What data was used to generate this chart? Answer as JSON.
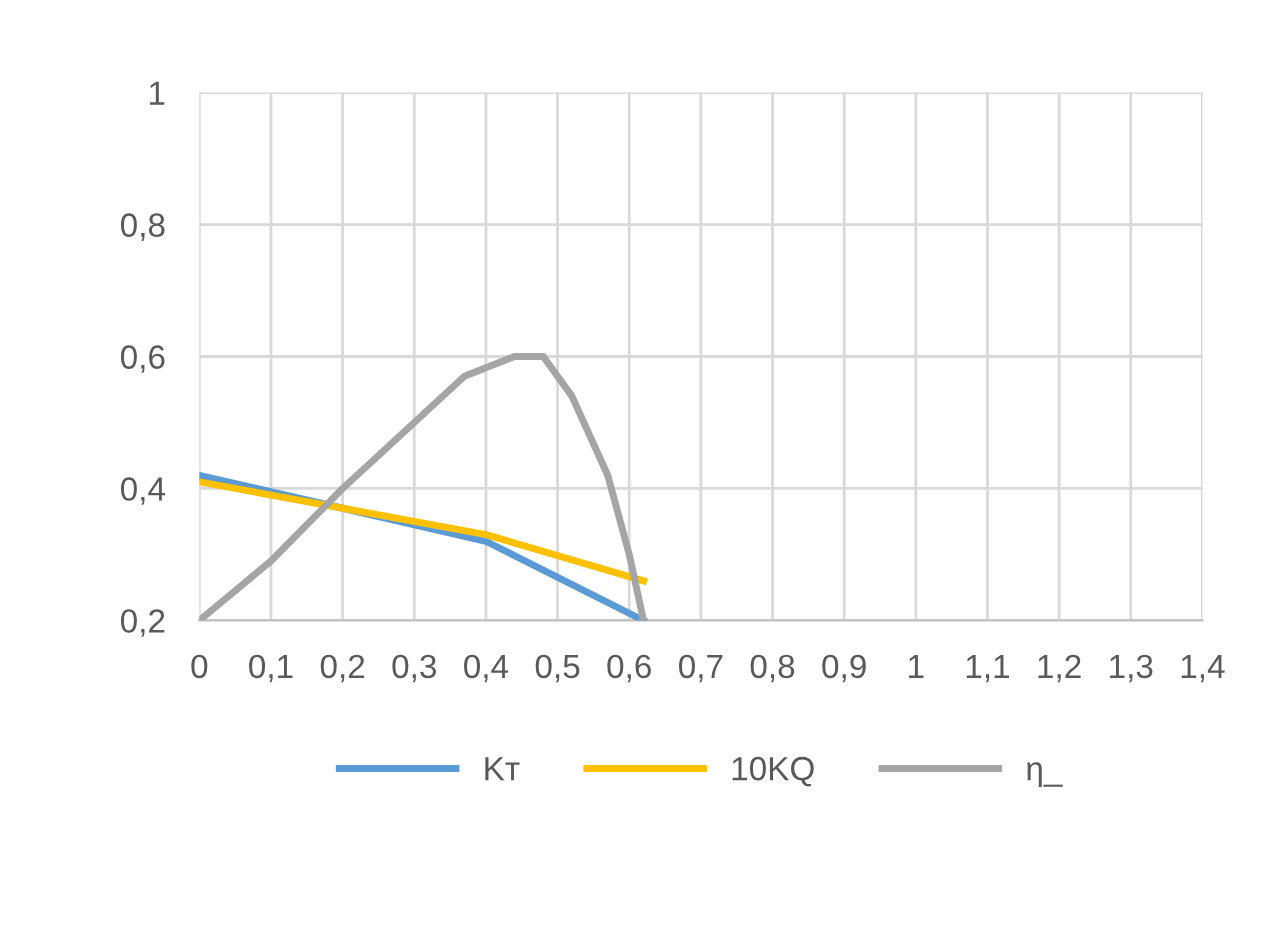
{
  "chart_data": {
    "type": "line",
    "xlim": [
      0,
      1.4
    ],
    "xticks": [
      0,
      {
        "value": 0.1,
        "label": "0,1"
      },
      {
        "value": 0.2,
        "label": "0,2"
      },
      {
        "value": 0.3,
        "label": "0,3"
      },
      {
        "value": 0.4,
        "label": "0,4"
      },
      {
        "value": 0.5,
        "label": "0,5"
      },
      {
        "value": 0.6,
        "label": "0,6"
      },
      {
        "value": 0.7,
        "label": "0,7"
      },
      {
        "value": 0.8,
        "label": "0,8"
      },
      {
        "value": 0.9,
        "label": "0,9"
      },
      1,
      {
        "value": 1.1,
        "label": "1,1"
      },
      {
        "value": 1.2,
        "label": "1,2"
      },
      {
        "value": 1.3,
        "label": "1,3"
      },
      {
        "value": 1.4,
        "label": "1,4"
      }
    ],
    "ylim": [
      0.2,
      1
    ],
    "yticks": [
      {
        "value": 0.2,
        "label": "0,2"
      },
      {
        "value": 0.4,
        "label": "0,4"
      },
      {
        "value": 0.6,
        "label": "0,6"
      },
      {
        "value": 0.8,
        "label": "0,8"
      },
      1
    ],
    "grid": true,
    "legend": "bottom",
    "marker": "none",
    "line_style": "solid",
    "series": [
      {
        "name": "Kт",
        "color": "#5b9bd5",
        "x": [
          0,
          0.2,
          0.4,
          0.62
        ],
        "values": [
          0.42,
          0.37,
          0.32,
          0.2
        ]
      },
      {
        "name": "10KQ",
        "color": "#ffc000",
        "x": [
          0,
          0.2,
          0.4,
          0.62
        ],
        "values": [
          0.41,
          0.37,
          0.33,
          0.26
        ]
      },
      {
        "name": "η_",
        "color": "#a5a5a5",
        "x": [
          0,
          0.1,
          0.2,
          0.3,
          0.37,
          0.44,
          0.48,
          0.52,
          0.57,
          0.6,
          0.62
        ],
        "values": [
          0.2,
          0.29,
          0.4,
          0.5,
          0.57,
          0.6,
          0.6,
          0.54,
          0.42,
          0.3,
          0.2
        ]
      }
    ]
  }
}
